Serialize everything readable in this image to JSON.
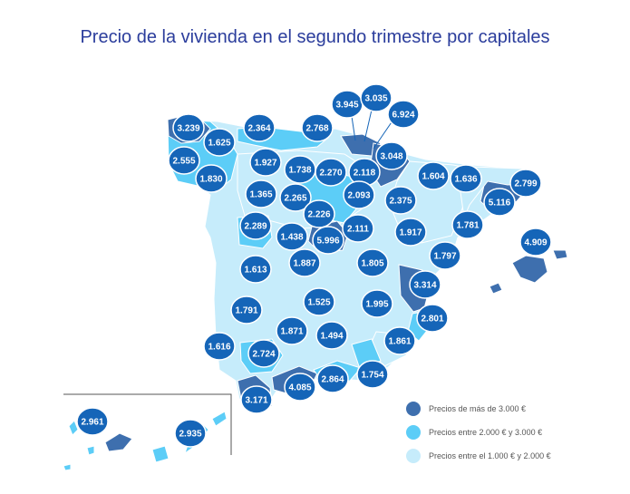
{
  "title": "Precio de la vivienda en el segundo trimestre por capitales",
  "colors": {
    "high": "#3e6fae",
    "mid": "#5ccdf7",
    "low": "#c6ecfb",
    "pin": "#1565b8",
    "border": "#ffffff",
    "title": "#2b3d9c"
  },
  "legend": [
    {
      "key": "high",
      "label": "Precios de más de 3.000 €"
    },
    {
      "key": "mid",
      "label": "Precios entre 2.000 € y 3.000 €"
    },
    {
      "key": "low",
      "label": "Precios entre el 1.000 € y 2.000 €"
    }
  ],
  "labels": [
    "3.945",
    "3.035",
    "6.924",
    "3.239",
    "2.364",
    "2.768",
    "1.625",
    "3.048",
    "2.555",
    "1.927",
    "1.738",
    "2.270",
    "2.118",
    "1.604",
    "1.636",
    "2.799",
    "1.830",
    "1.365",
    "2.265",
    "2.093",
    "2.375",
    "5.116",
    "2.226",
    "2.289",
    "2.111",
    "1.917",
    "1.781",
    "1.438",
    "5.996",
    "4.909",
    "1.887",
    "1.805",
    "1.797",
    "1.613",
    "3.314",
    "1.525",
    "1.995",
    "1.791",
    "2.801",
    "1.871",
    "1.494",
    "1.861",
    "1.616",
    "2.724",
    "2.864",
    "1.754",
    "4.085",
    "3.171",
    "2.961",
    "2.935"
  ]
}
